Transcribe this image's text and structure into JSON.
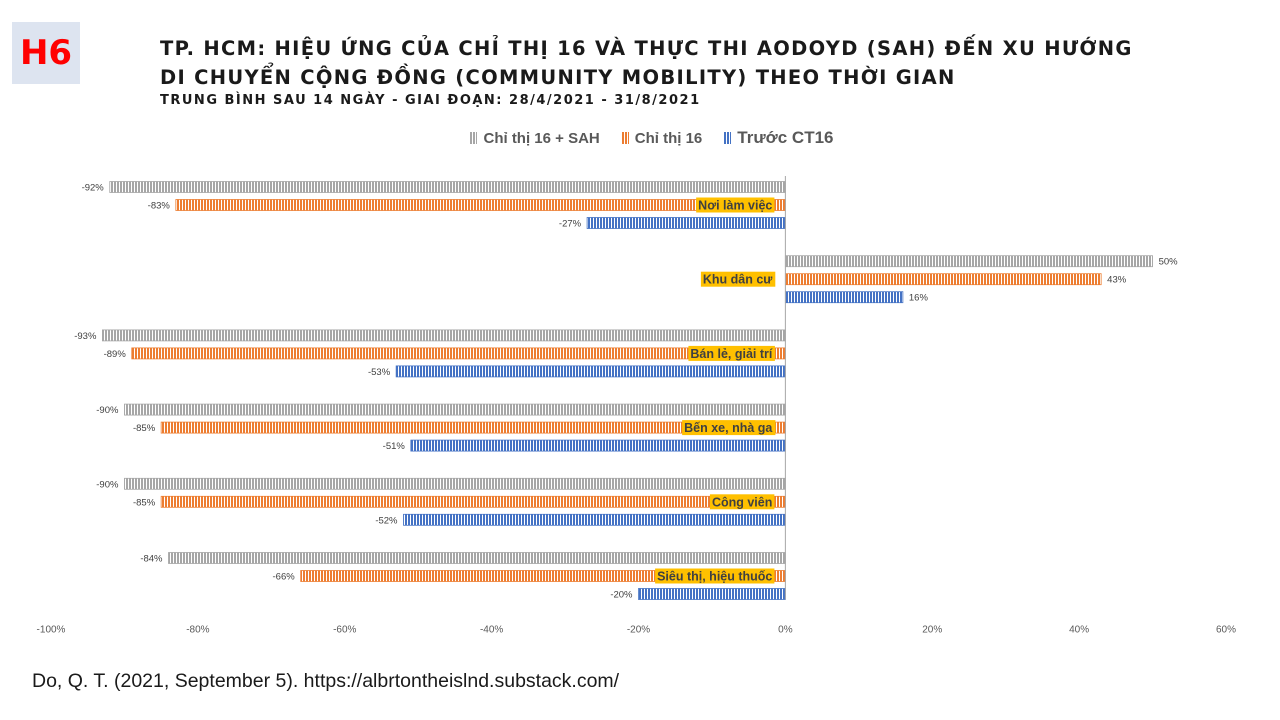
{
  "badge": "H6",
  "title_line1": "TP. HCM: HIỆU ỨNG CỦA CHỈ THỊ 16 VÀ THỰC THI AODOYD (SAH) ĐẾN XU HƯỚNG",
  "title_line2": "DI CHUYỂN CỘNG ĐỒNG (COMMUNITY MOBILITY) THEO THỜI GIAN",
  "subtitle": "TRUNG BÌNH SAU 14 NGÀY - GIAI ĐOẠN: 28/4/2021 - 31/8/2021",
  "citation": "Do, Q. T. (2021, September 5). https://albrtontheislnd.substack.com/",
  "chart_data": {
    "type": "bar",
    "orientation": "horizontal",
    "categories": [
      "Nơi làm việc",
      "Khu dân cư",
      "Bán lẻ, giải trí",
      "Bến xe, nhà ga",
      "Công viên",
      "Siêu thị, hiệu thuốc"
    ],
    "series": [
      {
        "name": "Chỉ thị 16 + SAH",
        "color": "#a6a6a6",
        "values": [
          -92,
          50,
          -93,
          -90,
          -90,
          -84
        ]
      },
      {
        "name": "Chỉ thị 16",
        "color": "#ed7d31",
        "values": [
          -83,
          43,
          -89,
          -85,
          -85,
          -66
        ]
      },
      {
        "name": "Trước CT16",
        "color": "#4472c4",
        "values": [
          -27,
          16,
          -53,
          -51,
          -52,
          -20
        ]
      }
    ],
    "xlim": [
      -100,
      60
    ],
    "xticks": [
      -100,
      -80,
      -60,
      -40,
      -20,
      0,
      20,
      40,
      60
    ],
    "xtick_labels": [
      "-100%",
      "-80%",
      "-60%",
      "-40%",
      "-20%",
      "0%",
      "20%",
      "40%",
      "60%"
    ],
    "value_suffix": "%",
    "category_label_color": "#ffc000",
    "legend_position": "top",
    "grid": false
  }
}
